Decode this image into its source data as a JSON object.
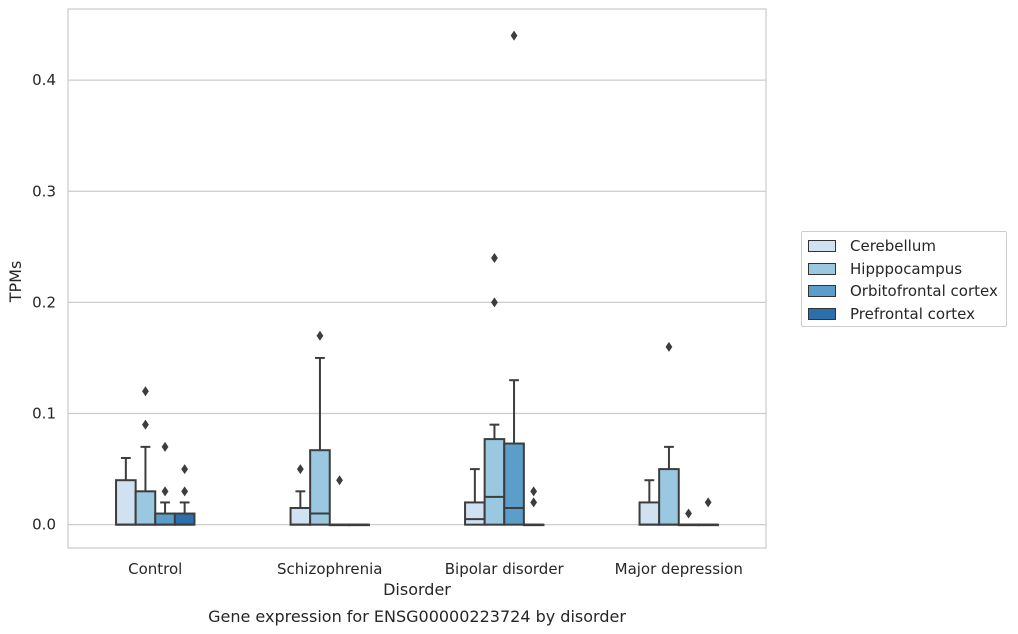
{
  "chart_data": {
    "type": "box",
    "caption": "Gene expression for ENSG00000223724 by disorder",
    "xlabel": "Disorder",
    "ylabel": "TPMs",
    "ylim": [
      -0.021,
      0.464
    ],
    "yticks": [
      0.0,
      0.1,
      0.2,
      0.3,
      0.4
    ],
    "ytick_labels": [
      "0.0",
      "0.1",
      "0.2",
      "0.3",
      "0.4"
    ],
    "grid": "horizontal",
    "legend_position": "right",
    "categories": [
      "Control",
      "Schizophrenia",
      "Bipolar disorder",
      "Major depression"
    ],
    "series": [
      {
        "name": "Cerebellum",
        "color": "#d0e1f2",
        "boxes": [
          {
            "q1": 0.0,
            "median": 0.0,
            "q3": 0.04,
            "whisker_low": 0.0,
            "whisker_high": 0.06,
            "outliers": []
          },
          {
            "q1": 0.0,
            "median": 0.0,
            "q3": 0.015,
            "whisker_low": 0.0,
            "whisker_high": 0.03,
            "outliers": [
              0.05
            ]
          },
          {
            "q1": 0.0,
            "median": 0.005,
            "q3": 0.02,
            "whisker_low": 0.0,
            "whisker_high": 0.05,
            "outliers": []
          },
          {
            "q1": 0.0,
            "median": 0.0,
            "q3": 0.02,
            "whisker_low": 0.0,
            "whisker_high": 0.04,
            "outliers": []
          }
        ]
      },
      {
        "name": "Hipppocampus",
        "color": "#9ac8e0",
        "boxes": [
          {
            "q1": 0.0,
            "median": 0.0,
            "q3": 0.03,
            "whisker_low": 0.0,
            "whisker_high": 0.07,
            "outliers": [
              0.09,
              0.12
            ]
          },
          {
            "q1": 0.0,
            "median": 0.01,
            "q3": 0.067,
            "whisker_low": 0.0,
            "whisker_high": 0.15,
            "outliers": [
              0.17
            ]
          },
          {
            "q1": 0.0,
            "median": 0.025,
            "q3": 0.077,
            "whisker_low": 0.0,
            "whisker_high": 0.09,
            "outliers": [
              0.2,
              0.24
            ]
          },
          {
            "q1": 0.0,
            "median": 0.0,
            "q3": 0.05,
            "whisker_low": 0.0,
            "whisker_high": 0.07,
            "outliers": [
              0.16
            ]
          }
        ]
      },
      {
        "name": "Orbitofrontal cortex",
        "color": "#5a9ec9",
        "boxes": [
          {
            "q1": 0.0,
            "median": 0.0,
            "q3": 0.01,
            "whisker_low": 0.0,
            "whisker_high": 0.02,
            "outliers": [
              0.03,
              0.07
            ]
          },
          {
            "q1": 0.0,
            "median": 0.0,
            "q3": 0.0,
            "whisker_low": 0.0,
            "whisker_high": 0.0,
            "outliers": [
              0.04
            ]
          },
          {
            "q1": 0.0,
            "median": 0.015,
            "q3": 0.073,
            "whisker_low": 0.0,
            "whisker_high": 0.13,
            "outliers": [
              0.44
            ]
          },
          {
            "q1": 0.0,
            "median": 0.0,
            "q3": 0.0,
            "whisker_low": 0.0,
            "whisker_high": 0.0,
            "outliers": [
              0.01
            ]
          }
        ]
      },
      {
        "name": "Prefrontal cortex",
        "color": "#2c6fad",
        "boxes": [
          {
            "q1": 0.0,
            "median": 0.0,
            "q3": 0.01,
            "whisker_low": 0.0,
            "whisker_high": 0.02,
            "outliers": [
              0.03,
              0.05
            ]
          },
          {
            "q1": 0.0,
            "median": 0.0,
            "q3": 0.0,
            "whisker_low": 0.0,
            "whisker_high": 0.0,
            "outliers": []
          },
          {
            "q1": 0.0,
            "median": 0.0,
            "q3": 0.0,
            "whisker_low": 0.0,
            "whisker_high": 0.0,
            "outliers": [
              0.02,
              0.03
            ]
          },
          {
            "q1": 0.0,
            "median": 0.0,
            "q3": 0.0,
            "whisker_low": 0.0,
            "whisker_high": 0.0,
            "outliers": [
              0.02
            ]
          }
        ]
      }
    ]
  }
}
